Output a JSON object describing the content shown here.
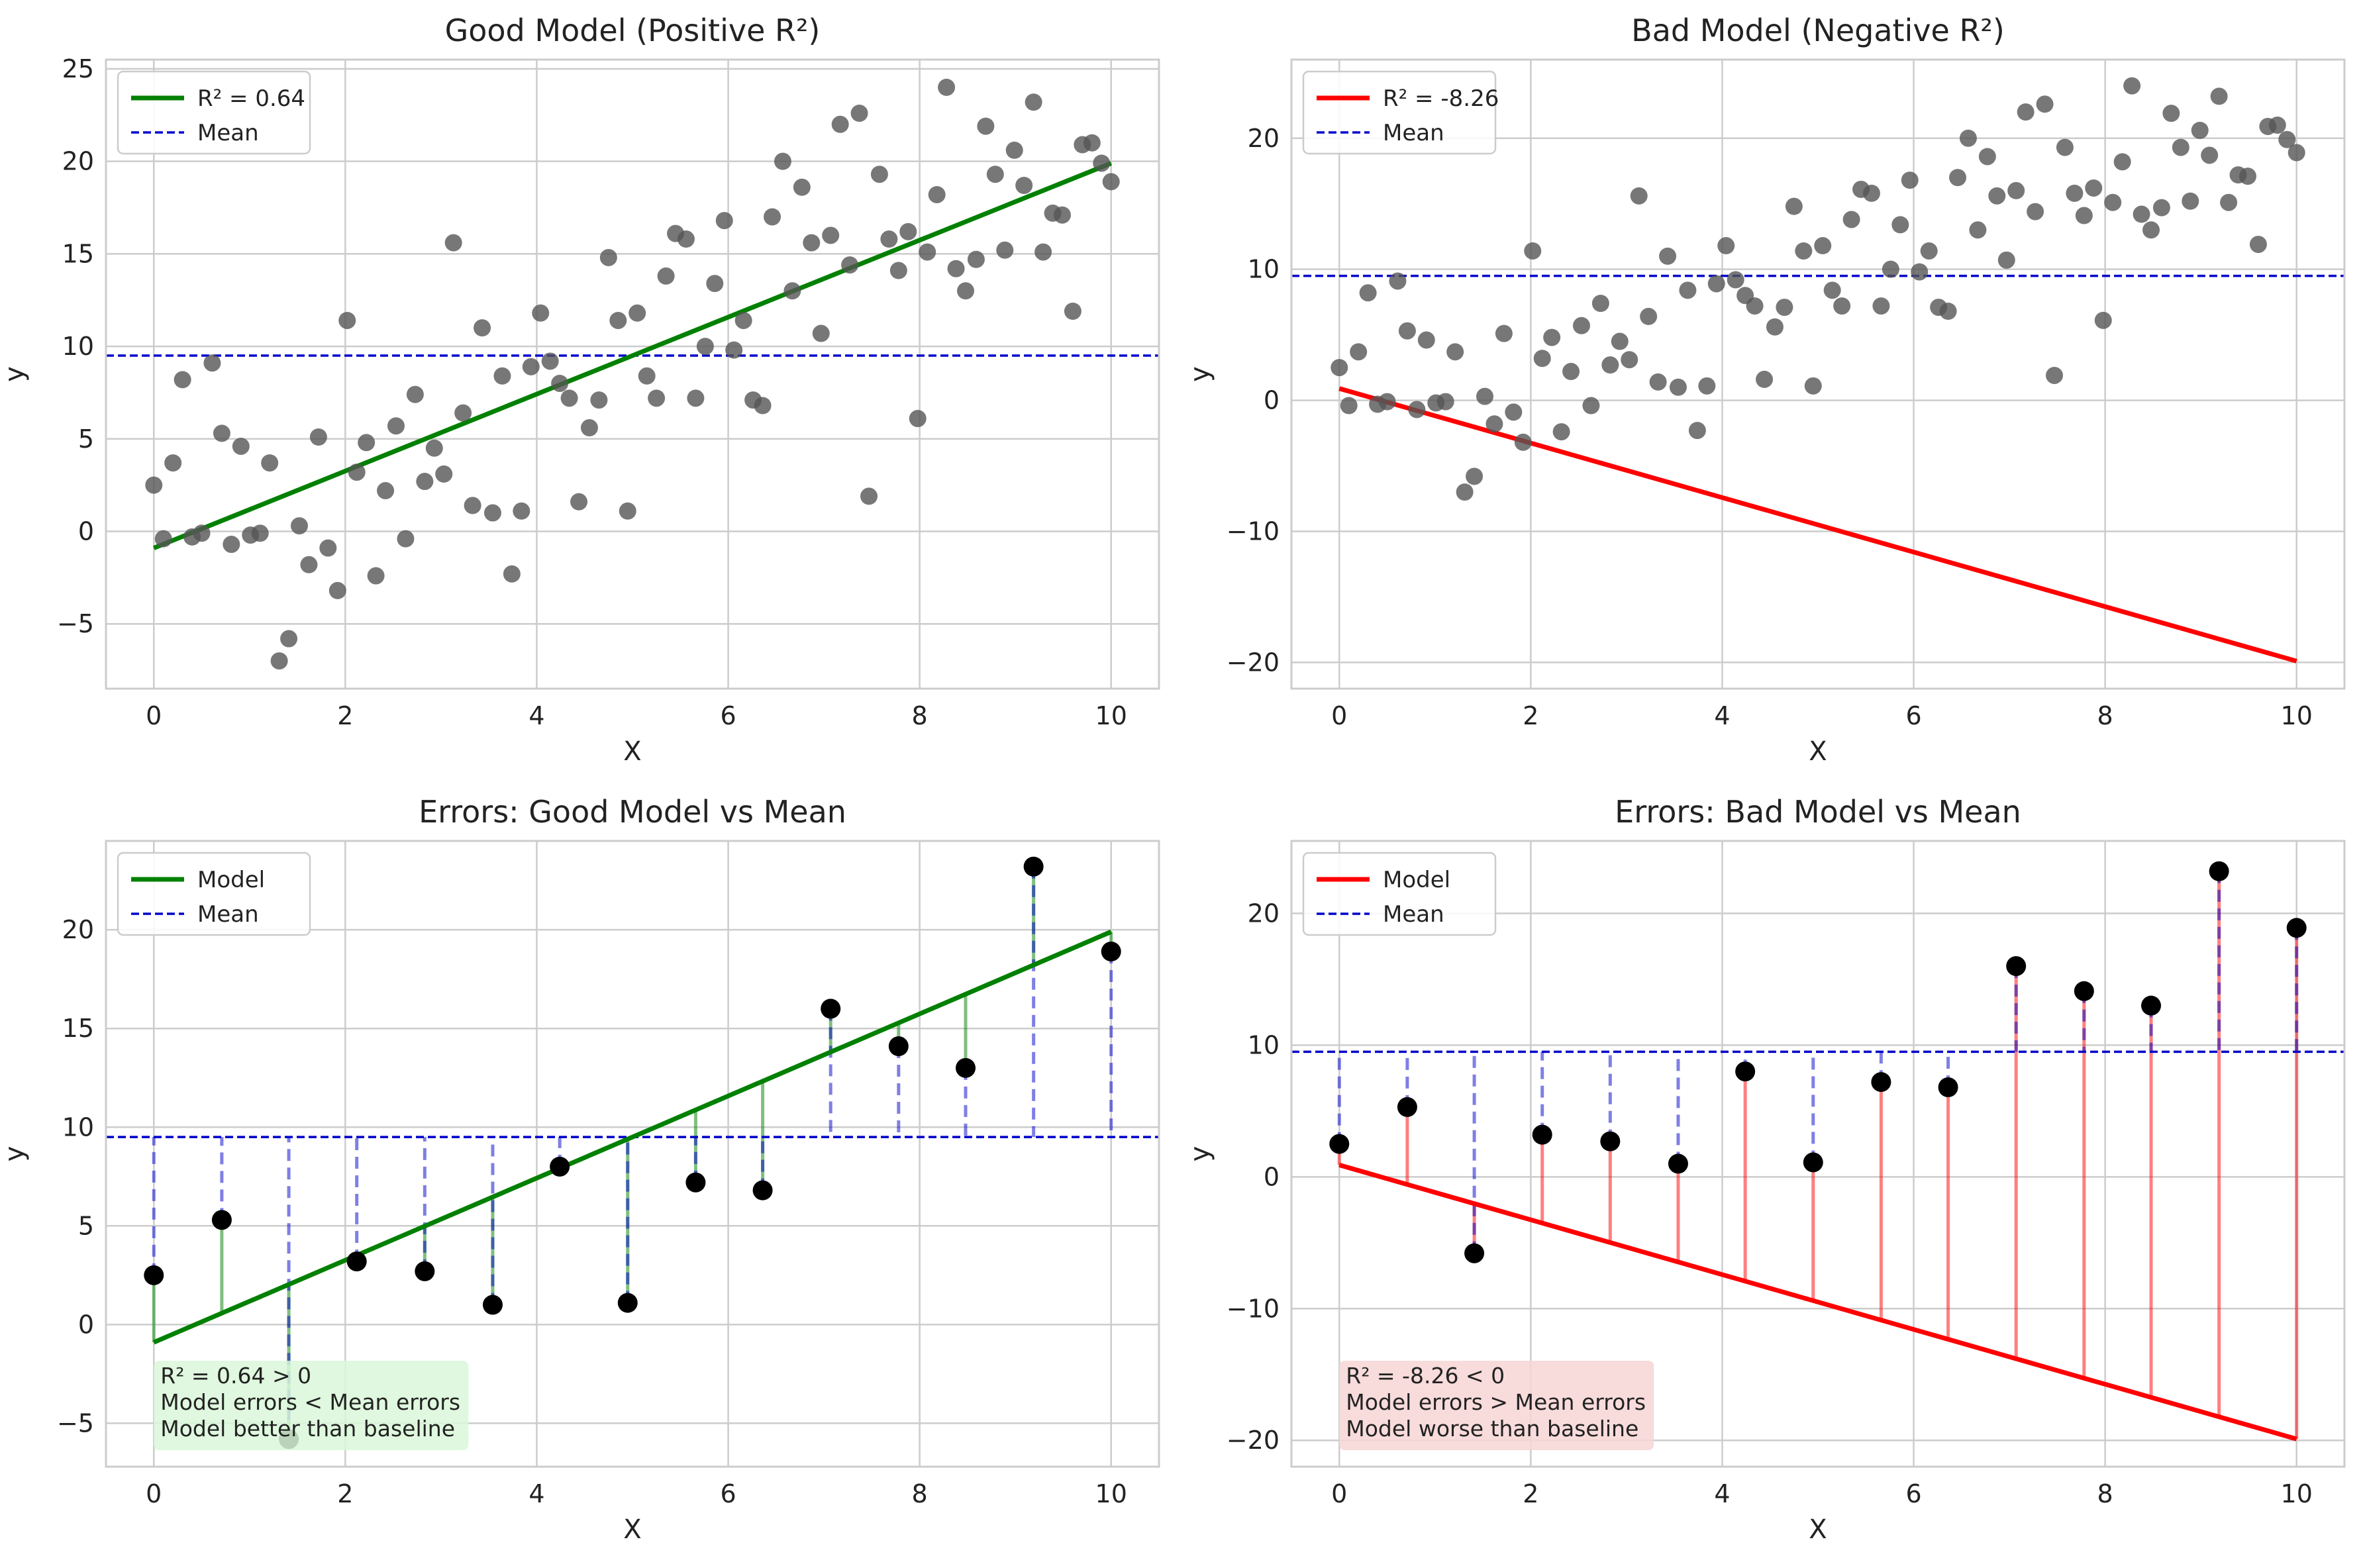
{
  "colors": {
    "good_model": "#008000",
    "bad_model": "#ff0000",
    "mean": "#0000cc",
    "points_scatter": "#555555",
    "points_errors": "#000000",
    "grid": "#cccccc",
    "good_box": "#d9f7d9",
    "bad_box": "#f7d5d5"
  },
  "chart_data": [
    {
      "type": "scatter",
      "title": "Good Model (Positive R²)",
      "xlabel": "X",
      "ylabel": "y",
      "xlim": [
        -0.5,
        10.5
      ],
      "ylim": [
        -8.5,
        25.5
      ],
      "xticks": [
        0,
        2,
        4,
        6,
        8,
        10
      ],
      "yticks": [
        -5,
        0,
        5,
        10,
        15,
        20,
        25
      ],
      "grid": true,
      "legend_position": "top-left",
      "legend": [
        {
          "label": "R² = 0.64",
          "style": "solid",
          "color_key": "good_model"
        },
        {
          "label": "Mean",
          "style": "dashed",
          "color_key": "mean"
        }
      ],
      "model_line": {
        "x": [
          0,
          10
        ],
        "y": [
          -0.9,
          19.9
        ],
        "color_key": "good_model"
      },
      "mean_value": 9.5,
      "points": {
        "x": [
          0.0,
          0.1,
          0.2,
          0.3,
          0.4,
          0.5,
          0.61,
          0.71,
          0.81,
          0.91,
          1.01,
          1.11,
          1.21,
          1.31,
          1.41,
          1.52,
          1.62,
          1.72,
          1.82,
          1.92,
          2.02,
          2.12,
          2.22,
          2.32,
          2.42,
          2.53,
          2.63,
          2.73,
          2.83,
          2.93,
          3.03,
          3.13,
          3.23,
          3.33,
          3.43,
          3.54,
          3.64,
          3.74,
          3.84,
          3.94,
          4.04,
          4.14,
          4.24,
          4.34,
          4.44,
          4.55,
          4.65,
          4.75,
          4.85,
          4.95,
          5.05,
          5.15,
          5.25,
          5.35,
          5.45,
          5.56,
          5.66,
          5.76,
          5.86,
          5.96,
          6.06,
          6.16,
          6.26,
          6.36,
          6.46,
          6.57,
          6.67,
          6.77,
          6.87,
          6.97,
          7.07,
          7.17,
          7.27,
          7.37,
          7.47,
          7.58,
          7.68,
          7.78,
          7.88,
          7.98,
          8.08,
          8.18,
          8.28,
          8.38,
          8.48,
          8.59,
          8.69,
          8.79,
          8.89,
          8.99,
          9.09,
          9.19,
          9.29,
          9.39,
          9.49,
          9.6,
          9.7,
          9.8,
          9.9,
          10.0
        ],
        "y": [
          2.5,
          -0.4,
          3.7,
          8.2,
          -0.3,
          -0.1,
          9.1,
          5.3,
          -0.7,
          4.6,
          -0.2,
          -0.1,
          3.7,
          -7.0,
          -5.8,
          0.3,
          -1.8,
          5.1,
          -0.9,
          -3.2,
          11.4,
          3.2,
          4.8,
          -2.4,
          2.2,
          5.7,
          -0.4,
          7.4,
          2.7,
          4.5,
          3.1,
          15.6,
          6.4,
          1.4,
          11.0,
          1.0,
          8.4,
          -2.3,
          1.1,
          8.9,
          11.8,
          9.2,
          8.0,
          7.2,
          1.6,
          5.6,
          7.1,
          14.8,
          11.4,
          1.1,
          11.8,
          8.4,
          7.2,
          13.8,
          16.1,
          15.8,
          7.2,
          10.0,
          13.4,
          16.8,
          9.8,
          11.4,
          7.1,
          6.8,
          17.0,
          20.0,
          13.0,
          18.6,
          15.6,
          10.7,
          16.0,
          22.0,
          14.4,
          22.6,
          1.9,
          19.3,
          15.8,
          14.1,
          16.2,
          6.1,
          15.1,
          18.2,
          24.0,
          14.2,
          13.0,
          14.7,
          21.9,
          19.3,
          15.2,
          20.6,
          18.7,
          23.2,
          15.1,
          17.2,
          17.1,
          11.9,
          20.9,
          21.0,
          19.9,
          18.9
        ]
      }
    },
    {
      "type": "scatter",
      "title": "Bad Model (Negative R²)",
      "xlabel": "X",
      "ylabel": "y",
      "xlim": [
        -0.5,
        10.5
      ],
      "ylim": [
        -22,
        26
      ],
      "xticks": [
        0,
        2,
        4,
        6,
        8,
        10
      ],
      "yticks": [
        -20,
        -10,
        0,
        10,
        20
      ],
      "grid": true,
      "legend_position": "top-left",
      "legend": [
        {
          "label": "R² = -8.26",
          "style": "solid",
          "color_key": "bad_model"
        },
        {
          "label": "Mean",
          "style": "dashed",
          "color_key": "mean"
        }
      ],
      "model_line": {
        "x": [
          0,
          10
        ],
        "y": [
          0.9,
          -19.9
        ],
        "color_key": "bad_model"
      },
      "mean_value": 9.5,
      "points": "same as first chart"
    },
    {
      "type": "scatter",
      "title": "Errors: Good Model vs Mean",
      "xlabel": "X",
      "ylabel": "y",
      "xlim": [
        -0.5,
        10.5
      ],
      "ylim": [
        -7.2,
        24.5
      ],
      "xticks": [
        0,
        2,
        4,
        6,
        8,
        10
      ],
      "yticks": [
        -5,
        0,
        5,
        10,
        15,
        20
      ],
      "grid": true,
      "legend_position": "top-left",
      "legend": [
        {
          "label": "Model",
          "style": "solid",
          "color_key": "good_model"
        },
        {
          "label": "Mean",
          "style": "dashed",
          "color_key": "mean"
        }
      ],
      "model_line": {
        "x": [
          0,
          10
        ],
        "y": [
          -0.9,
          19.9
        ],
        "color_key": "good_model"
      },
      "mean_value": 9.5,
      "points": {
        "x": [
          0.0,
          0.71,
          1.41,
          2.12,
          2.83,
          3.54,
          4.24,
          4.95,
          5.66,
          6.36,
          7.07,
          7.78,
          8.48,
          9.19,
          10.0
        ],
        "y": [
          2.5,
          5.3,
          -5.8,
          3.2,
          2.7,
          1.0,
          8.0,
          1.1,
          7.2,
          6.8,
          16.0,
          14.1,
          13.0,
          23.2,
          18.9
        ]
      },
      "annotation": [
        "R² = 0.64 > 0",
        "Model errors < Mean errors",
        "Model better than baseline"
      ]
    },
    {
      "type": "scatter",
      "title": "Errors: Bad Model vs Mean",
      "xlabel": "X",
      "ylabel": "y",
      "xlim": [
        -0.5,
        10.5
      ],
      "ylim": [
        -22,
        25.5
      ],
      "xticks": [
        0,
        2,
        4,
        6,
        8,
        10
      ],
      "yticks": [
        -20,
        -10,
        0,
        10,
        20
      ],
      "grid": true,
      "legend_position": "top-left",
      "legend": [
        {
          "label": "Model",
          "style": "solid",
          "color_key": "bad_model"
        },
        {
          "label": "Mean",
          "style": "dashed",
          "color_key": "mean"
        }
      ],
      "model_line": {
        "x": [
          0,
          10
        ],
        "y": [
          0.9,
          -19.9
        ],
        "color_key": "bad_model"
      },
      "mean_value": 9.5,
      "points": "same as third chart",
      "annotation": [
        "R² = -8.26 < 0",
        "Model errors > Mean errors",
        "Model worse than baseline"
      ]
    }
  ]
}
